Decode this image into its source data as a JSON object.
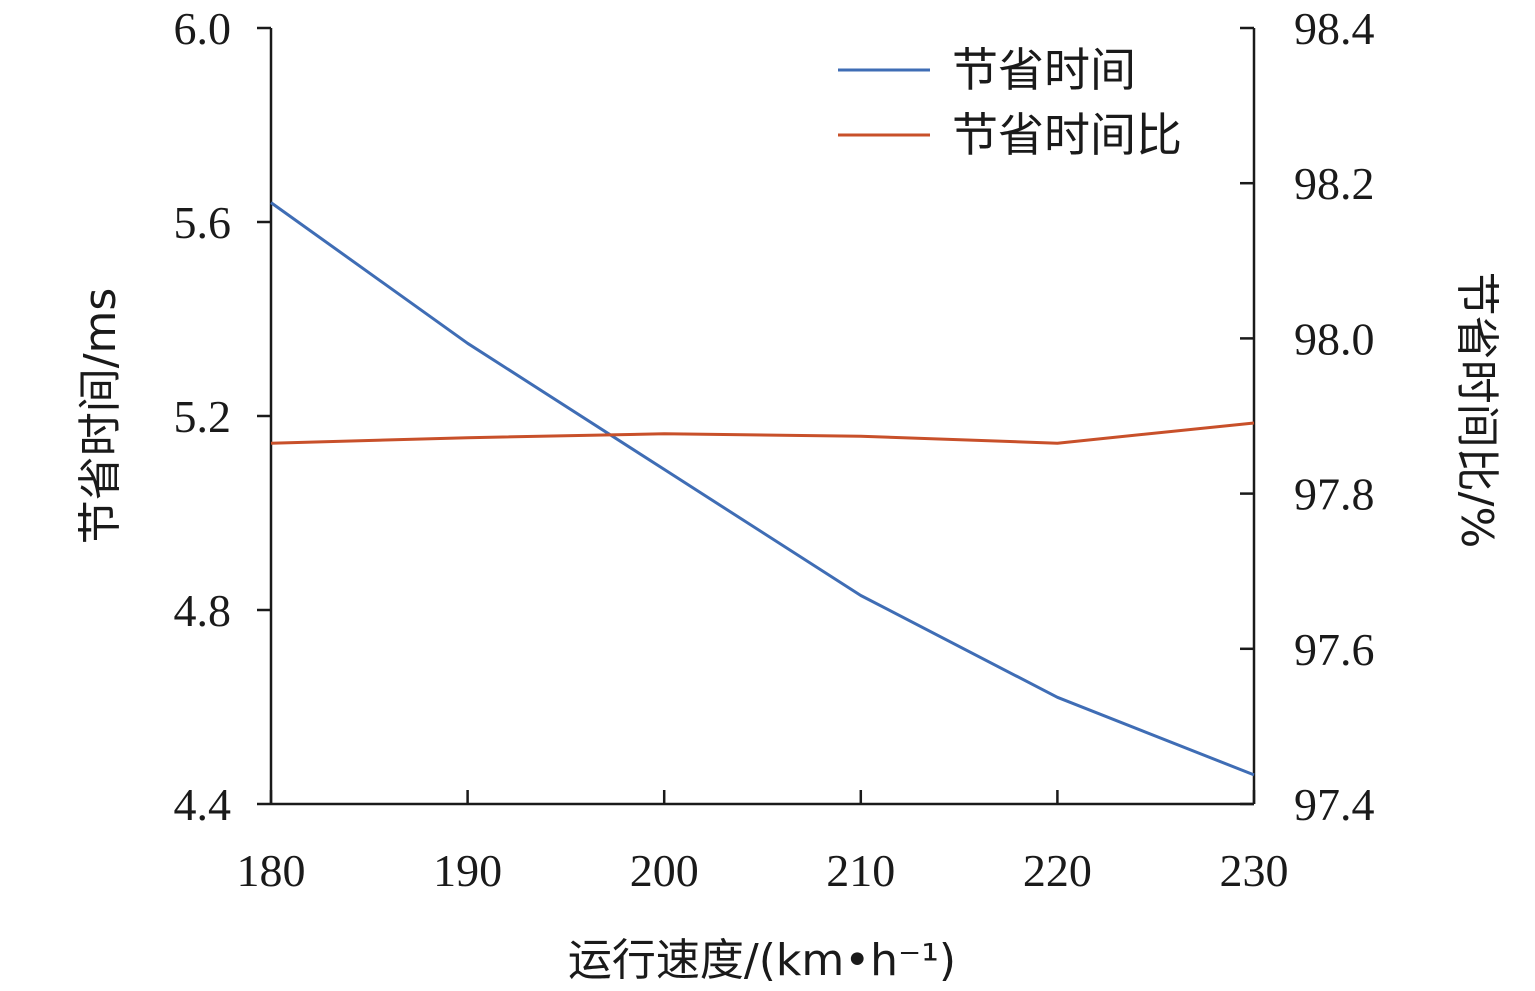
{
  "chart_data": {
    "type": "line",
    "x": [
      180,
      190,
      200,
      210,
      220,
      230
    ],
    "xlim": [
      180,
      230
    ],
    "x_ticks": [
      "180",
      "190",
      "200",
      "210",
      "220",
      "230"
    ],
    "xlabel": "运行速度/(km•h⁻¹)",
    "ylabel_left": "节省时间/ms",
    "ylim_left": [
      4.4,
      6.0
    ],
    "y_left_ticks": [
      "4.4",
      "4.8",
      "5.2",
      "5.6",
      "6.0"
    ],
    "ylabel_right": "节省时间比/%",
    "ylim_right": [
      97.4,
      98.4
    ],
    "y_right_ticks": [
      "97.4",
      "97.6",
      "97.8",
      "98.0",
      "98.2",
      "98.4"
    ],
    "series": [
      {
        "name": "节省时间",
        "axis": "left",
        "color": "#3f6db5",
        "values": [
          5.64,
          5.35,
          5.09,
          4.83,
          4.62,
          4.46
        ]
      },
      {
        "name": "节省时间比",
        "axis": "right",
        "color": "#c8502a",
        "values": [
          97.865,
          97.872,
          97.877,
          97.874,
          97.865,
          97.891
        ]
      }
    ],
    "legend_position": "top-right",
    "grid": false
  }
}
